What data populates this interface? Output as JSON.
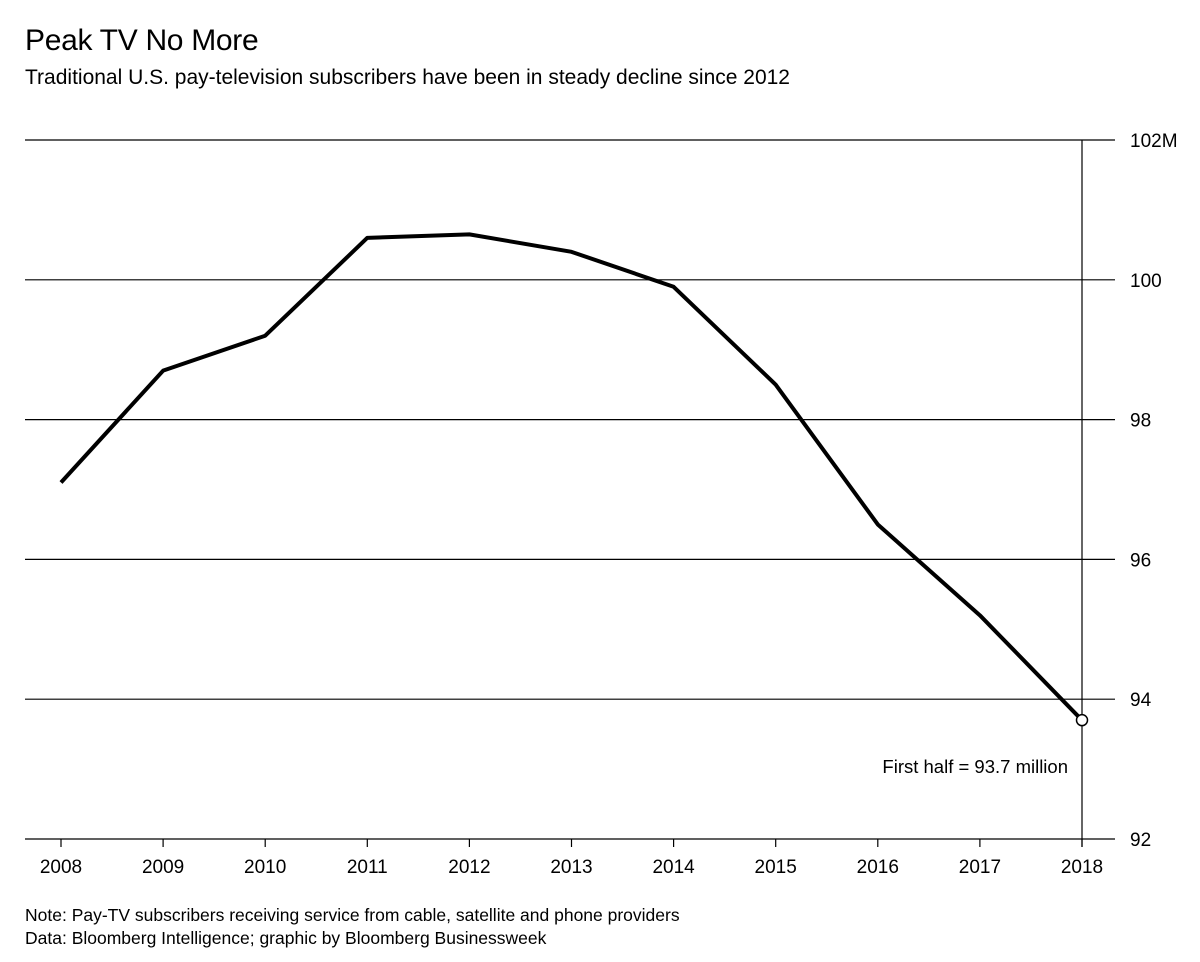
{
  "header": {
    "title": "Peak TV No More",
    "subtitle": "Traditional U.S. pay-television subscribers have been in steady decline since 2012"
  },
  "footer": {
    "note": "Note: Pay-TV subscribers receiving service from cable, satellite and phone providers",
    "source": "Data: Bloomberg Intelligence; graphic by Bloomberg Businessweek"
  },
  "chart_data": {
    "type": "line",
    "title": "Peak TV No More",
    "subtitle": "Traditional U.S. pay-television subscribers have been in steady decline since 2012",
    "x": [
      2008,
      2009,
      2010,
      2011,
      2012,
      2013,
      2014,
      2015,
      2016,
      2017,
      2018
    ],
    "series": [
      {
        "name": "",
        "values": [
          97.1,
          98.7,
          99.2,
          100.6,
          100.65,
          100.4,
          99.9,
          98.5,
          96.5,
          95.2,
          93.7
        ]
      }
    ],
    "xlim": [
      2008,
      2018
    ],
    "ylim": [
      92,
      102
    ],
    "yticks": [
      92,
      94,
      96,
      98,
      100,
      102
    ],
    "ytick_labels": [
      "92",
      "94",
      "96",
      "98",
      "100",
      "102M"
    ],
    "xtick_labels": [
      "2008",
      "2009",
      "2010",
      "2011",
      "2012",
      "2013",
      "2014",
      "2015",
      "2016",
      "2017",
      "2018"
    ],
    "y_axis_side": "right",
    "grid": true,
    "annotation": {
      "text": "First half = 93.7 million",
      "x": 2018,
      "y": 93.7
    },
    "colors": {
      "line": "#000000",
      "grid": "#000000",
      "marker_fill": "#ffffff"
    }
  }
}
